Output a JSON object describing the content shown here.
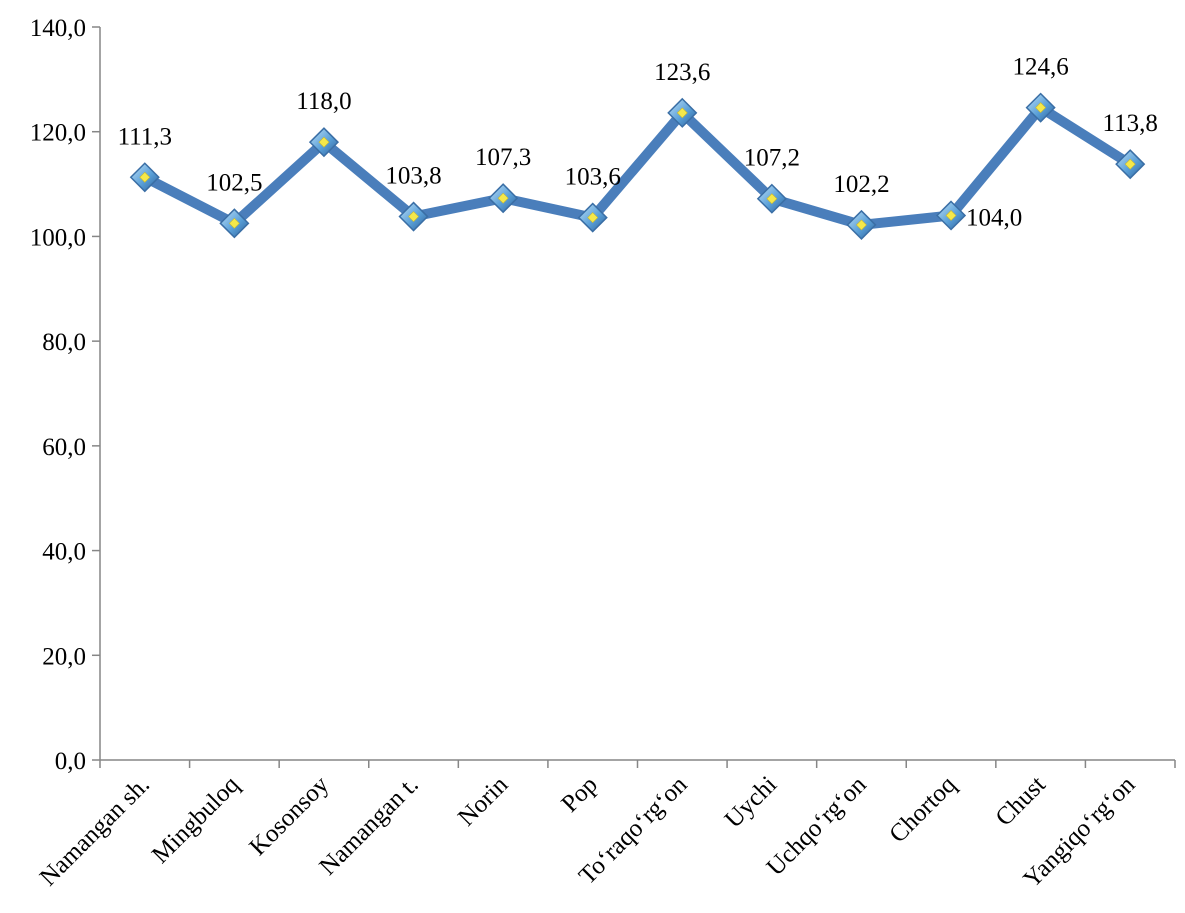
{
  "chart_data": {
    "type": "line",
    "title": "",
    "xlabel": "",
    "ylabel": "",
    "categories": [
      "Namangan sh.",
      "Mingbuloq",
      "Kosonsoy",
      "Namangan t.",
      "Norin",
      "Pop",
      "To‘raqo‘rg‘on",
      "Uychi",
      "Uchqo‘rg‘on",
      "Chortoq",
      "Chust",
      "Yangiqo‘rg‘on"
    ],
    "series": [
      {
        "values": [
          111.3,
          102.5,
          118.0,
          103.8,
          107.3,
          103.6,
          123.6,
          107.2,
          102.2,
          104.0,
          124.6,
          113.8
        ],
        "labels": [
          "111,3",
          "102,5",
          "118,0",
          "103,8",
          "107,3",
          "103,6",
          "123,6",
          "107,2",
          "102,2",
          "104,0",
          "124,6",
          "113,8"
        ]
      }
    ],
    "ylim": [
      0,
      140
    ],
    "yticks": [
      0,
      20,
      40,
      60,
      80,
      100,
      120,
      140
    ],
    "ytick_labels": [
      "0,0",
      "20,0",
      "40,0",
      "60,0",
      "80,0",
      "100,0",
      "120,0",
      "140,0"
    ],
    "grid": false,
    "legend": "none",
    "colors": {
      "line": "#4a7ebb",
      "marker_outline": "#3a6ea5",
      "marker_center": "#f5e84a",
      "axis": "#868686"
    }
  }
}
